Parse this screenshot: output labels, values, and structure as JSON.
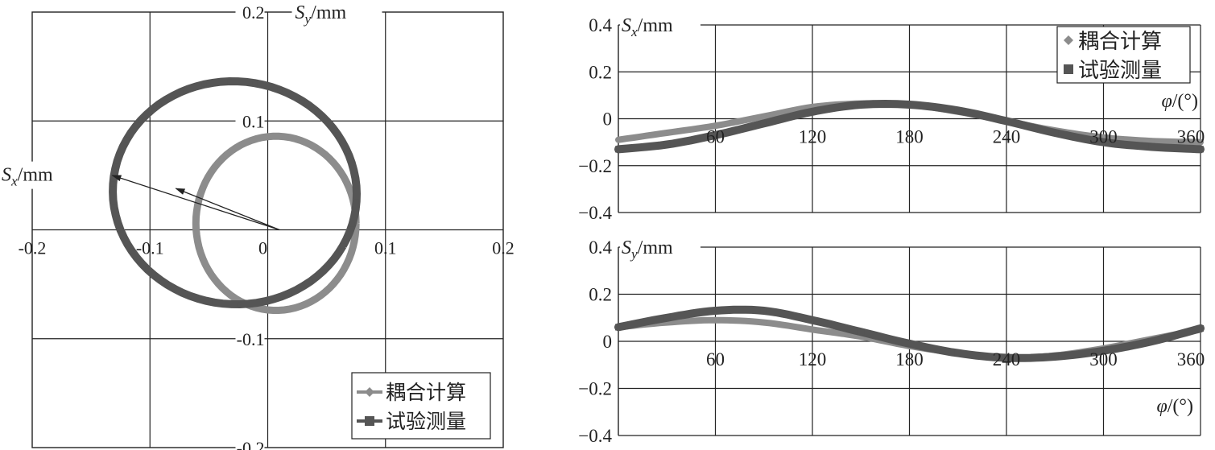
{
  "chart_data": [
    {
      "type": "scatter",
      "id": "orbit",
      "xlabel": "S",
      "xlabel_sub": "x",
      "xlabel_unit": "/mm",
      "ylabel": "S",
      "ylabel_sub": "y",
      "ylabel_unit": "/mm",
      "xlim": [
        -0.2,
        0.2
      ],
      "ylim": [
        -0.2,
        0.2
      ],
      "xticks": [
        "-0.2",
        "-0.1",
        "0",
        "0.1",
        "0.2"
      ],
      "yticks": [
        "0.2",
        "0.1",
        "-0.1",
        "-0.2"
      ],
      "grid": true,
      "legend_position": "bottom-right",
      "series": [
        {
          "name": "耦合计算",
          "marker": "diamond",
          "color": "#8c8c8c",
          "center": [
            0.007,
            0.006
          ],
          "radius_x": 0.068,
          "radius_y": 0.08,
          "tilt_deg": 0
        },
        {
          "name": "试验测量",
          "marker": "square",
          "color": "#555555",
          "center": [
            -0.028,
            0.034
          ],
          "radius_x": 0.104,
          "radius_y": 0.102,
          "tilt_deg": -28
        }
      ],
      "arrows": [
        {
          "from": [
            0.01,
            0.0
          ],
          "to": [
            -0.132,
            0.05
          ]
        },
        {
          "from": [
            0.01,
            0.0
          ],
          "to": [
            -0.078,
            0.038
          ]
        }
      ]
    },
    {
      "type": "line",
      "id": "sx",
      "ylabel": "S",
      "ylabel_sub": "x",
      "ylabel_unit": "/mm",
      "xlabel": "φ",
      "xlabel_unit": "/(°)",
      "xlim": [
        0,
        360
      ],
      "ylim": [
        -0.4,
        0.4
      ],
      "xticks": [
        "60",
        "120",
        "180",
        "240",
        "300",
        "360"
      ],
      "yticks": [
        "0.4",
        "0.2",
        "0",
        "−0.2",
        "−0.4"
      ],
      "grid": true,
      "legend_position": "top-right",
      "series": [
        {
          "name": "耦合计算",
          "marker": "diamond",
          "color": "#8c8c8c",
          "x": [
            0,
            30,
            60,
            90,
            120,
            150,
            180,
            210,
            240,
            270,
            300,
            330,
            360
          ],
          "y": [
            -0.09,
            -0.06,
            -0.03,
            0.01,
            0.05,
            0.065,
            0.06,
            0.03,
            -0.01,
            -0.05,
            -0.08,
            -0.095,
            -0.1
          ]
        },
        {
          "name": "试验测量",
          "marker": "square",
          "color": "#555555",
          "x": [
            0,
            30,
            60,
            90,
            120,
            150,
            180,
            210,
            240,
            270,
            300,
            330,
            360
          ],
          "y": [
            -0.13,
            -0.11,
            -0.07,
            -0.02,
            0.03,
            0.06,
            0.06,
            0.035,
            -0.01,
            -0.06,
            -0.1,
            -0.12,
            -0.13
          ]
        }
      ]
    },
    {
      "type": "line",
      "id": "sy",
      "ylabel": "S",
      "ylabel_sub": "y",
      "ylabel_unit": "/mm",
      "xlabel": "φ",
      "xlabel_unit": "/(°)",
      "xlim": [
        0,
        360
      ],
      "ylim": [
        -0.4,
        0.4
      ],
      "xticks": [
        "60",
        "120",
        "180",
        "240",
        "300",
        "360"
      ],
      "yticks": [
        "0.4",
        "0.2",
        "0",
        "−0.2",
        "−0.4"
      ],
      "grid": true,
      "legend_position": "none",
      "series": [
        {
          "name": "耦合计算",
          "marker": "diamond",
          "color": "#8c8c8c",
          "x": [
            0,
            30,
            60,
            90,
            120,
            150,
            180,
            210,
            240,
            270,
            300,
            330,
            360
          ],
          "y": [
            0.06,
            0.08,
            0.09,
            0.08,
            0.05,
            0.02,
            -0.02,
            -0.05,
            -0.07,
            -0.06,
            -0.03,
            0.01,
            0.05
          ]
        },
        {
          "name": "试验测量",
          "marker": "square",
          "color": "#555555",
          "x": [
            0,
            30,
            60,
            90,
            120,
            150,
            180,
            210,
            240,
            270,
            300,
            330,
            360
          ],
          "y": [
            0.06,
            0.1,
            0.13,
            0.13,
            0.09,
            0.04,
            -0.01,
            -0.05,
            -0.07,
            -0.065,
            -0.04,
            0.0,
            0.055
          ]
        }
      ]
    }
  ]
}
